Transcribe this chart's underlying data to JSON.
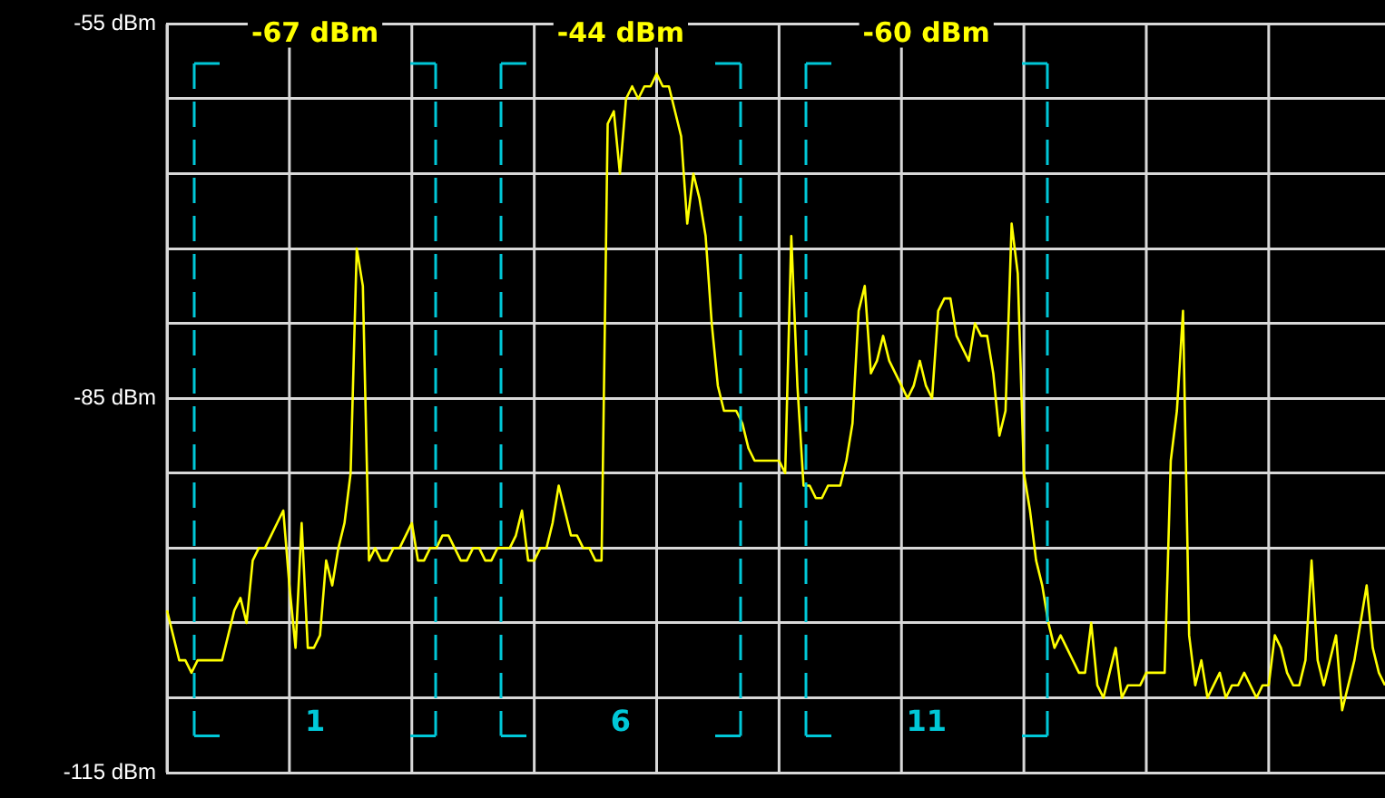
{
  "chart_data": {
    "type": "line",
    "marker": "none",
    "line_style": "solid",
    "grid": true,
    "tick_labels": "y",
    "categories": [
      null,
      null,
      null,
      null,
      null,
      null,
      null,
      null,
      null,
      null,
      null,
      null,
      null,
      null,
      null,
      null,
      null,
      null,
      null,
      null,
      null,
      null,
      null,
      null,
      null,
      null,
      null,
      null,
      null,
      null,
      null,
      null,
      null,
      null,
      null,
      null,
      null,
      null,
      null,
      null,
      null,
      null,
      null,
      null,
      null,
      null,
      null,
      null,
      null,
      null,
      null,
      null,
      null,
      null,
      null,
      null,
      null,
      null,
      null,
      null,
      null,
      null,
      null,
      null,
      null,
      null,
      null,
      null,
      null,
      null,
      null,
      null,
      null,
      null,
      null,
      null,
      null,
      null,
      null,
      null,
      null,
      null,
      null,
      null,
      null,
      null,
      null,
      null,
      null,
      null,
      null,
      null,
      null,
      null,
      null,
      null,
      null,
      null,
      null,
      null,
      null,
      null,
      null,
      null,
      null,
      null,
      null,
      null,
      null,
      null,
      null,
      null,
      null,
      null,
      null,
      null,
      null,
      null,
      null,
      null,
      null,
      null,
      null,
      null,
      null,
      null,
      null,
      null,
      null,
      null,
      null,
      null,
      null,
      null,
      null,
      null,
      null,
      null,
      null,
      null,
      null,
      null,
      null,
      null,
      null,
      null,
      null,
      null,
      null,
      null,
      null,
      null,
      null,
      null,
      null,
      null,
      null,
      null,
      null,
      null,
      null,
      null,
      null,
      null,
      null,
      null,
      null,
      null,
      null,
      null,
      null,
      null,
      null,
      null,
      null,
      null,
      null,
      null,
      null,
      null,
      null,
      null,
      null,
      null,
      null,
      null,
      null,
      null,
      null,
      null,
      null,
      null,
      null,
      null,
      null,
      null,
      null,
      null,
      null,
      null
    ],
    "ylim": [
      -115,
      -55
    ],
    "yticks": [
      {
        "value": -115,
        "label": "-115 dBm"
      },
      {
        "value": -109,
        "label": null
      },
      {
        "value": -103,
        "label": null
      },
      {
        "value": -97,
        "label": null
      },
      {
        "value": -91,
        "label": null
      },
      {
        "value": -85,
        "label": "-85 dBm"
      },
      {
        "value": -79,
        "label": null
      },
      {
        "value": -73,
        "label": null
      },
      {
        "value": -67,
        "label": null
      },
      {
        "value": -61,
        "label": null
      },
      {
        "value": -55,
        "label": "-55 dBm"
      }
    ],
    "series": [
      {
        "color": "#ffff00",
        "values": [
          -102,
          -104,
          -106,
          -106,
          -107,
          -106,
          -106,
          -106,
          -106,
          -106,
          -104,
          -102,
          -101,
          -103,
          -98,
          -97,
          -97,
          -96,
          -95,
          -94,
          -100,
          -105,
          -95,
          -105,
          -105,
          -104,
          -98,
          -100,
          -97,
          -95,
          -91,
          -73,
          -76,
          -98,
          -97,
          -98,
          -98,
          -97,
          -97,
          -96,
          -95,
          -98,
          -98,
          -97,
          -97,
          -96,
          -96,
          -97,
          -98,
          -98,
          -97,
          -97,
          -98,
          -98,
          -97,
          -97,
          -97,
          -96,
          -94,
          -98,
          -98,
          -97,
          -97,
          -95,
          -92,
          -94,
          -96,
          -96,
          -97,
          -97,
          -98,
          -98,
          -63,
          -62,
          -67,
          -61,
          -60,
          -61,
          -60,
          -60,
          -59,
          -60,
          -60,
          -62,
          -64,
          -71,
          -67,
          -69,
          -72,
          -79,
          -84,
          -86,
          -86,
          -86,
          -87,
          -89,
          -90,
          -90,
          -90,
          -90,
          -90,
          -91,
          -72,
          -84,
          -92,
          -92,
          -93,
          -93,
          -92,
          -92,
          -92,
          -90,
          -87,
          -78,
          -76,
          -83,
          -82,
          -80,
          -82,
          -83,
          -84,
          -85,
          -84,
          -82,
          -84,
          -85,
          -78,
          -77,
          -77,
          -80,
          -81,
          -82,
          -79,
          -80,
          -80,
          -83,
          -88,
          -86,
          -71,
          -75,
          -91,
          -94,
          -98,
          -100,
          -103,
          -105,
          -104,
          -105,
          -106,
          -107,
          -107,
          -103,
          -108,
          -109,
          -107,
          -105,
          -109,
          -108,
          -108,
          -108,
          -107,
          -107,
          -107,
          -107,
          -90,
          -86,
          -78,
          -104,
          -108,
          -106,
          -109,
          -108,
          -107,
          -109,
          -108,
          -108,
          -107,
          -108,
          -109,
          -108,
          -108,
          -104,
          -105,
          -107,
          -108,
          -108,
          -106,
          -98,
          -106,
          -108,
          -106,
          -104,
          -110,
          -108,
          -106,
          -103,
          -100,
          -105,
          -107,
          -108
        ]
      }
    ],
    "annotations": [
      "-67 dBm",
      "1",
      "-44 dBm",
      "6",
      "-60 dBm",
      "11"
    ]
  }
}
